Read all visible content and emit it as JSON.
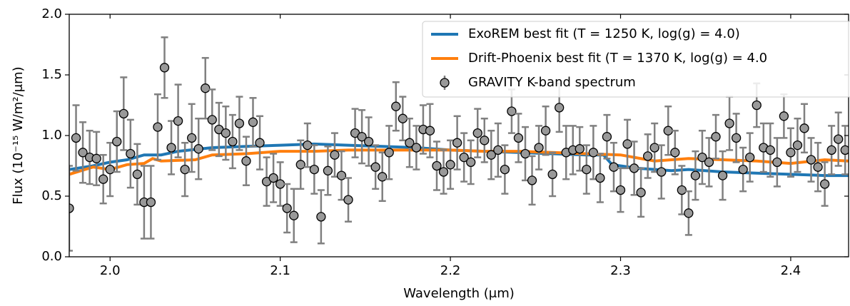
{
  "chart_data": {
    "type": "errorbar",
    "xlabel": "Wavelength (μm)",
    "ylabel": "Flux (10⁻¹⁵ W/m²/μm)",
    "xlim": [
      1.976,
      2.434
    ],
    "ylim": [
      0,
      2
    ],
    "xticks": [
      {
        "value": 2,
        "label": "2.0"
      },
      2.1,
      2.2,
      2.3,
      2.4
    ],
    "yticks": [
      {
        "value": 0,
        "label": "0.0"
      },
      0.5,
      {
        "value": 1,
        "label": "1.0"
      },
      1.5,
      {
        "value": 2,
        "label": "2.0"
      }
    ],
    "legend": "upper right",
    "series": [
      {
        "name": "ExoREM best fit (T = 1250 K, log(g) = 4.0)",
        "type": "line",
        "color": "#1f77b4",
        "x": [
          1.976,
          1.99,
          2.0,
          2.01,
          2.02,
          2.03,
          2.04,
          2.06,
          2.08,
          2.1,
          2.12,
          2.14,
          2.16,
          2.18,
          2.2,
          2.22,
          2.24,
          2.26,
          2.28,
          2.29,
          2.295,
          2.31,
          2.33,
          2.34,
          2.36,
          2.38,
          2.4,
          2.42,
          2.434
        ],
        "values": [
          0.72,
          0.75,
          0.78,
          0.8,
          0.84,
          0.84,
          0.87,
          0.9,
          0.91,
          0.92,
          0.93,
          0.92,
          0.91,
          0.9,
          0.88,
          0.87,
          0.86,
          0.85,
          0.84,
          0.84,
          0.76,
          0.73,
          0.71,
          0.72,
          0.7,
          0.69,
          0.68,
          0.67,
          0.67
        ]
      },
      {
        "name": "Drift-Phoenix best fit (T = 1370 K, log(g) = 4.0",
        "type": "line",
        "color": "#ff7f0e",
        "x": [
          1.976,
          1.99,
          2.0,
          2.01,
          2.02,
          2.025,
          2.03,
          2.05,
          2.06,
          2.08,
          2.1,
          2.12,
          2.14,
          2.16,
          2.18,
          2.2,
          2.22,
          2.24,
          2.26,
          2.28,
          2.3,
          2.32,
          2.34,
          2.36,
          2.38,
          2.4,
          2.42,
          2.434
        ],
        "values": [
          0.68,
          0.74,
          0.72,
          0.76,
          0.77,
          0.81,
          0.79,
          0.8,
          0.84,
          0.85,
          0.87,
          0.87,
          0.88,
          0.88,
          0.88,
          0.88,
          0.87,
          0.87,
          0.86,
          0.85,
          0.84,
          0.79,
          0.81,
          0.8,
          0.79,
          0.77,
          0.8,
          0.79
        ]
      },
      {
        "name": "GRAVITY K-band spectrum",
        "type": "errorbar",
        "color": "#999999",
        "x": [
          1.976,
          1.98,
          1.984,
          1.988,
          1.992,
          1.996,
          2.0,
          2.004,
          2.008,
          2.012,
          2.016,
          2.02,
          2.024,
          2.028,
          2.032,
          2.036,
          2.04,
          2.044,
          2.048,
          2.052,
          2.056,
          2.06,
          2.064,
          2.068,
          2.072,
          2.076,
          2.08,
          2.084,
          2.088,
          2.092,
          2.096,
          2.1,
          2.104,
          2.108,
          2.112,
          2.116,
          2.12,
          2.124,
          2.128,
          2.132,
          2.136,
          2.14,
          2.144,
          2.148,
          2.152,
          2.156,
          2.16,
          2.164,
          2.168,
          2.172,
          2.176,
          2.18,
          2.184,
          2.188,
          2.192,
          2.196,
          2.2,
          2.204,
          2.208,
          2.212,
          2.216,
          2.22,
          2.224,
          2.228,
          2.232,
          2.236,
          2.24,
          2.244,
          2.248,
          2.252,
          2.256,
          2.26,
          2.264,
          2.268,
          2.272,
          2.276,
          2.28,
          2.284,
          2.288,
          2.292,
          2.296,
          2.3,
          2.304,
          2.308,
          2.312,
          2.316,
          2.32,
          2.324,
          2.328,
          2.332,
          2.336,
          2.34,
          2.344,
          2.348,
          2.352,
          2.356,
          2.36,
          2.364,
          2.368,
          2.372,
          2.376,
          2.38,
          2.384,
          2.388,
          2.392,
          2.396,
          2.4,
          2.404,
          2.408,
          2.412,
          2.416,
          2.42,
          2.424,
          2.428,
          2.432
        ],
        "values": [
          0.4,
          0.98,
          0.86,
          0.82,
          0.81,
          0.64,
          0.72,
          0.95,
          1.18,
          0.85,
          0.68,
          0.45,
          0.45,
          1.07,
          1.56,
          0.9,
          1.12,
          0.72,
          0.98,
          0.89,
          1.39,
          1.13,
          1.05,
          1.02,
          0.95,
          1.1,
          0.79,
          1.11,
          0.94,
          0.62,
          0.65,
          0.6,
          0.4,
          0.34,
          0.76,
          0.92,
          0.72,
          0.33,
          0.71,
          0.84,
          0.67,
          0.47,
          1.02,
          0.99,
          0.95,
          0.74,
          0.66,
          0.86,
          1.24,
          1.14,
          0.94,
          0.9,
          1.05,
          1.04,
          0.75,
          0.7,
          0.76,
          0.94,
          0.82,
          0.78,
          1.02,
          0.96,
          0.84,
          0.88,
          0.72,
          1.2,
          0.98,
          0.85,
          0.63,
          0.9,
          1.04,
          0.68,
          1.23,
          0.86,
          0.88,
          0.89,
          0.72,
          0.86,
          0.65,
          0.99,
          0.74,
          0.55,
          0.93,
          0.73,
          0.53,
          0.83,
          0.9,
          0.7,
          1.04,
          0.86,
          0.55,
          0.36,
          0.67,
          0.82,
          0.78,
          0.99,
          0.67,
          1.1,
          0.98,
          0.72,
          0.82,
          1.25,
          0.9,
          0.88,
          0.78,
          1.16,
          0.86,
          0.92,
          1.06,
          0.8,
          0.74,
          0.6,
          0.88,
          0.97,
          0.88
        ],
        "errors": [
          0.35,
          0.27,
          0.25,
          0.22,
          0.22,
          0.2,
          0.22,
          0.25,
          0.3,
          0.28,
          0.25,
          0.3,
          0.3,
          0.27,
          0.25,
          0.22,
          0.3,
          0.22,
          0.28,
          0.25,
          0.25,
          0.25,
          0.22,
          0.22,
          0.22,
          0.22,
          0.2,
          0.2,
          0.22,
          0.2,
          0.2,
          0.18,
          0.2,
          0.22,
          0.2,
          0.18,
          0.2,
          0.22,
          0.2,
          0.18,
          0.2,
          0.18,
          0.2,
          0.22,
          0.2,
          0.18,
          0.2,
          0.22,
          0.2,
          0.18,
          0.2,
          0.18,
          0.2,
          0.22,
          0.2,
          0.18,
          0.2,
          0.22,
          0.2,
          0.18,
          0.2,
          0.18,
          0.2,
          0.22,
          0.2,
          0.18,
          0.2,
          0.22,
          0.2,
          0.18,
          0.2,
          0.18,
          0.2,
          0.22,
          0.2,
          0.18,
          0.2,
          0.22,
          0.2,
          0.18,
          0.2,
          0.18,
          0.2,
          0.22,
          0.2,
          0.18,
          0.2,
          0.22,
          0.2,
          0.18,
          0.2,
          0.18,
          0.2,
          0.22,
          0.2,
          0.18,
          0.2,
          0.22,
          0.2,
          0.18,
          0.2,
          0.18,
          0.2,
          0.22,
          0.2,
          0.18,
          0.2,
          0.22,
          0.2,
          0.18,
          0.2,
          0.18,
          0.2,
          0.22,
          0.2
        ]
      }
    ]
  }
}
